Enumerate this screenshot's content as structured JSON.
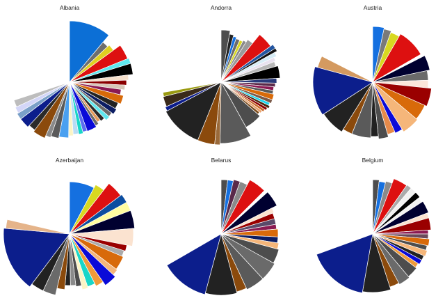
{
  "chart_data": [
    {
      "type": "pie",
      "title": "Albania",
      "slices": [
        {
          "radius": 88,
          "degrees": 40,
          "color": "#0c6fd6"
        },
        {
          "radius": 75,
          "degrees": 7,
          "color": "#6e6e6e"
        },
        {
          "radius": 78,
          "degrees": 7,
          "color": "#e0d020"
        },
        {
          "radius": 90,
          "degrees": 14,
          "color": "#dd1010"
        },
        {
          "radius": 92,
          "degrees": 5,
          "color": "#5fe8f0"
        },
        {
          "radius": 92,
          "degrees": 10,
          "color": "#000000"
        },
        {
          "radius": 85,
          "degrees": 5,
          "color": "#f6e0cc"
        },
        {
          "radius": 82,
          "degrees": 5,
          "color": "#8a0000"
        },
        {
          "radius": 80,
          "degrees": 5,
          "color": "#d7c8b8"
        },
        {
          "radius": 75,
          "degrees": 6,
          "color": "#8b1a52"
        },
        {
          "radius": 80,
          "degrees": 9,
          "color": "#d86a0a"
        },
        {
          "radius": 76,
          "degrees": 7,
          "color": "#232323"
        },
        {
          "radius": 78,
          "degrees": 6,
          "color": "#0c1d63"
        },
        {
          "radius": 75,
          "degrees": 5,
          "color": "#6a6a6a"
        },
        {
          "radius": 76,
          "degrees": 5,
          "color": "#5fe8f0"
        },
        {
          "radius": 72,
          "degrees": 5,
          "color": "#2a2a2a"
        },
        {
          "radius": 70,
          "degrees": 4,
          "color": "#e59a5a"
        },
        {
          "radius": 73,
          "degrees": 4,
          "color": "#6b6b6b"
        },
        {
          "radius": 75,
          "degrees": 11,
          "color": "#0a0ad8"
        },
        {
          "radius": 74,
          "degrees": 5,
          "color": "#5b6df0"
        },
        {
          "radius": 76,
          "degrees": 5,
          "color": "#19d6c8"
        },
        {
          "radius": 75,
          "degrees": 6,
          "color": "#b9dcf5"
        },
        {
          "radius": 77,
          "degrees": 5,
          "color": "#fbf4c6"
        },
        {
          "radius": 80,
          "degrees": 10,
          "color": "#4aa0f0"
        },
        {
          "radius": 82,
          "degrees": 8,
          "color": "#5a5a5a"
        },
        {
          "radius": 84,
          "degrees": 5,
          "color": "#8a8a8a"
        },
        {
          "radius": 88,
          "degrees": 12,
          "color": "#8b4a0c"
        },
        {
          "radius": 85,
          "degrees": 7,
          "color": "#2a2a2a"
        },
        {
          "radius": 88,
          "degrees": 10,
          "color": "#0c1e8c"
        },
        {
          "radius": 88,
          "degrees": 6,
          "color": "#7aa0c8"
        },
        {
          "radius": 86,
          "degrees": 6,
          "color": "#d3d6f8"
        },
        {
          "radius": 84,
          "degrees": 7,
          "color": "#bdbdbd"
        },
        {
          "radius": 0,
          "degrees": 43,
          "color": "#ffffff"
        }
      ]
    },
    {
      "type": "pie",
      "title": "Andorra",
      "slices": [
        {
          "radius": 75,
          "degrees": 10,
          "color": "#4d4d4d"
        },
        {
          "radius": 70,
          "degrees": 5,
          "color": "#222222"
        },
        {
          "radius": 68,
          "degrees": 4,
          "color": "#1570e0"
        },
        {
          "radius": 66,
          "degrees": 5,
          "color": "#6b6b6b"
        },
        {
          "radius": 66,
          "degrees": 4,
          "color": "#d8d820"
        },
        {
          "radius": 68,
          "degrees": 4,
          "color": "#8a8a8a"
        },
        {
          "radius": 72,
          "degrees": 7,
          "color": "#9a9a9a"
        },
        {
          "radius": 88,
          "degrees": 15,
          "color": "#dd1010"
        },
        {
          "radius": 92,
          "degrees": 4,
          "color": "#2255a0"
        },
        {
          "radius": 92,
          "degrees": 3,
          "color": "#111111"
        },
        {
          "radius": 88,
          "degrees": 4,
          "color": "#d6ecf6"
        },
        {
          "radius": 84,
          "degrees": 4,
          "color": "#e9e2f0"
        },
        {
          "radius": 82,
          "degrees": 5,
          "color": "#b8b8b8"
        },
        {
          "radius": 85,
          "degrees": 12,
          "color": "#000000"
        },
        {
          "radius": 80,
          "degrees": 5,
          "color": "#2a3a7a"
        },
        {
          "radius": 78,
          "degrees": 4,
          "color": "#5a2a4a"
        },
        {
          "radius": 76,
          "degrees": 4,
          "color": "#8b1a52"
        },
        {
          "radius": 76,
          "degrees": 4,
          "color": "#5a5a5a"
        },
        {
          "radius": 78,
          "degrees": 6,
          "color": "#d86a0a"
        },
        {
          "radius": 78,
          "degrees": 4,
          "color": "#7a5a4a"
        },
        {
          "radius": 76,
          "degrees": 3,
          "color": "#19d6f0"
        },
        {
          "radius": 78,
          "degrees": 3,
          "color": "#4a2a10"
        },
        {
          "radius": 76,
          "degrees": 3,
          "color": "#8b0000"
        },
        {
          "radius": 74,
          "degrees": 3,
          "color": "#c86a2a"
        },
        {
          "radius": 72,
          "degrees": 3,
          "color": "#e8a06a"
        },
        {
          "radius": 70,
          "degrees": 3,
          "color": "#7a4a1a"
        },
        {
          "radius": 74,
          "degrees": 20,
          "color": "#4d4d4d"
        },
        {
          "radius": 88,
          "degrees": 30,
          "color": "#5a5a5a"
        },
        {
          "radius": 90,
          "degrees": 5,
          "color": "#9a6a3a"
        },
        {
          "radius": 90,
          "degrees": 16,
          "color": "#8b4a0c"
        },
        {
          "radius": 90,
          "degrees": 40,
          "color": "#222222"
        },
        {
          "radius": 88,
          "degrees": 4,
          "color": "#0c1d8c"
        },
        {
          "radius": 86,
          "degrees": 10,
          "color": "#3a2a1a"
        },
        {
          "radius": 85,
          "degrees": 4,
          "color": "#9a9a10"
        },
        {
          "radius": 0,
          "degrees": 71,
          "color": "#ffffff"
        }
      ]
    },
    {
      "type": "pie",
      "title": "Austria",
      "slices": [
        {
          "radius": 80,
          "degrees": 12,
          "color": "#1570e0"
        },
        {
          "radius": 78,
          "degrees": 8,
          "color": "#7a7a7a"
        },
        {
          "radius": 76,
          "degrees": 10,
          "color": "#d8d820"
        },
        {
          "radius": 80,
          "degrees": 30,
          "color": "#dd1010"
        },
        {
          "radius": 82,
          "degrees": 3,
          "color": "#ffffff"
        },
        {
          "radius": 84,
          "degrees": 15,
          "color": "#000030"
        },
        {
          "radius": 80,
          "degrees": 10,
          "color": "#6a6a6a"
        },
        {
          "radius": 80,
          "degrees": 8,
          "color": "#fbe6da"
        },
        {
          "radius": 85,
          "degrees": 18,
          "color": "#9a0000"
        },
        {
          "radius": 82,
          "degrees": 16,
          "color": "#d86a0a"
        },
        {
          "radius": 84,
          "degrees": 18,
          "color": "#f5b67a"
        },
        {
          "radius": 80,
          "degrees": 8,
          "color": "#0a0ad8"
        },
        {
          "radius": 78,
          "degrees": 8,
          "color": "#e58a4a"
        },
        {
          "radius": 82,
          "degrees": 10,
          "color": "#4d4d4d"
        },
        {
          "radius": 78,
          "degrees": 8,
          "color": "#222222"
        },
        {
          "radius": 80,
          "degrees": 20,
          "color": "#5a5a5a"
        },
        {
          "radius": 80,
          "degrees": 10,
          "color": "#8b4a0c"
        },
        {
          "radius": 84,
          "degrees": 25,
          "color": "#222222"
        },
        {
          "radius": 86,
          "degrees": 48,
          "color": "#0c1e8c"
        },
        {
          "radius": 82,
          "degrees": 12,
          "color": "#d49a60"
        },
        {
          "radius": 0,
          "degrees": 63,
          "color": "#ffffff"
        }
      ]
    },
    {
      "type": "pie",
      "title": "Azerbaijan",
      "slices": [
        {
          "radius": 75,
          "degrees": 28,
          "color": "#1570e0"
        },
        {
          "radius": 80,
          "degrees": 10,
          "color": "#d8d820"
        },
        {
          "radius": 92,
          "degrees": 15,
          "color": "#dd1010"
        },
        {
          "radius": 94,
          "degrees": 8,
          "color": "#0c4ea0"
        },
        {
          "radius": 94,
          "degrees": 8,
          "color": "#fffca0"
        },
        {
          "radius": 94,
          "degrees": 16,
          "color": "#000030"
        },
        {
          "radius": 92,
          "degrees": 16,
          "color": "#fbe3d0"
        },
        {
          "radius": 84,
          "degrees": 6,
          "color": "#9a0000"
        },
        {
          "radius": 82,
          "degrees": 6,
          "color": "#aaaaaa"
        },
        {
          "radius": 84,
          "degrees": 14,
          "color": "#d86a0a"
        },
        {
          "radius": 86,
          "degrees": 6,
          "color": "#f5b67a"
        },
        {
          "radius": 90,
          "degrees": 12,
          "color": "#0a0ad8"
        },
        {
          "radius": 84,
          "degrees": 8,
          "color": "#f09a3a"
        },
        {
          "radius": 80,
          "degrees": 8,
          "color": "#19d6c8"
        },
        {
          "radius": 82,
          "degrees": 6,
          "color": "#fbf4c6"
        },
        {
          "radius": 76,
          "degrees": 6,
          "color": "#4d4d4d"
        },
        {
          "radius": 74,
          "degrees": 6,
          "color": "#8a8a8a"
        },
        {
          "radius": 74,
          "degrees": 6,
          "color": "#222222"
        },
        {
          "radius": 80,
          "degrees": 8,
          "color": "#8b4a0c"
        },
        {
          "radius": 90,
          "degrees": 12,
          "color": "#6a6a6a"
        },
        {
          "radius": 90,
          "degrees": 12,
          "color": "#222222"
        },
        {
          "radius": 95,
          "degrees": 58,
          "color": "#0c1e8c"
        },
        {
          "radius": 92,
          "degrees": 8,
          "color": "#e5b48a"
        },
        {
          "radius": 0,
          "degrees": 61,
          "color": "#ffffff"
        }
      ]
    },
    {
      "type": "pie",
      "title": "Belarus",
      "slices": [
        {
          "radius": 78,
          "degrees": 7,
          "color": "#4d4d4d"
        },
        {
          "radius": 78,
          "degrees": 6,
          "color": "#1570e0"
        },
        {
          "radius": 80,
          "degrees": 7,
          "color": "#5a2a4a"
        },
        {
          "radius": 80,
          "degrees": 8,
          "color": "#8a8a8a"
        },
        {
          "radius": 88,
          "degrees": 17,
          "color": "#dd1010"
        },
        {
          "radius": 90,
          "degrees": 3,
          "color": "#ffffff"
        },
        {
          "radius": 90,
          "degrees": 15,
          "color": "#000030"
        },
        {
          "radius": 82,
          "degrees": 5,
          "color": "#fbe3d0"
        },
        {
          "radius": 80,
          "degrees": 6,
          "color": "#9a0000"
        },
        {
          "radius": 80,
          "degrees": 6,
          "color": "#5a4a6a"
        },
        {
          "radius": 80,
          "degrees": 5,
          "color": "#8b1a52"
        },
        {
          "radius": 82,
          "degrees": 8,
          "color": "#d86a0a"
        },
        {
          "radius": 82,
          "degrees": 6,
          "color": "#0c1d63"
        },
        {
          "radius": 84,
          "degrees": 6,
          "color": "#f5b67a"
        },
        {
          "radius": 86,
          "degrees": 14,
          "color": "#4d4d4d"
        },
        {
          "radius": 88,
          "degrees": 18,
          "color": "#6a6a6a"
        },
        {
          "radius": 88,
          "degrees": 18,
          "color": "#5a5a5a"
        },
        {
          "radius": 86,
          "degrees": 10,
          "color": "#8b4a0c"
        },
        {
          "radius": 88,
          "degrees": 30,
          "color": "#222222"
        },
        {
          "radius": 90,
          "degrees": 45,
          "color": "#0c1e8c"
        },
        {
          "radius": 0,
          "degrees": 94,
          "color": "#ffffff"
        }
      ]
    },
    {
      "type": "pie",
      "title": "Belgium",
      "slices": [
        {
          "radius": 78,
          "degrees": 7,
          "color": "#4d4d4d"
        },
        {
          "radius": 76,
          "degrees": 7,
          "color": "#1570e0"
        },
        {
          "radius": 78,
          "degrees": 7,
          "color": "#8a8a8a"
        },
        {
          "radius": 85,
          "degrees": 14,
          "color": "#dd1010"
        },
        {
          "radius": 86,
          "degrees": 5,
          "color": "#aaaaaa"
        },
        {
          "radius": 86,
          "degrees": 6,
          "color": "#f2f2f2"
        },
        {
          "radius": 86,
          "degrees": 6,
          "color": "#000000"
        },
        {
          "radius": 84,
          "degrees": 5,
          "color": "#f2f2f2"
        },
        {
          "radius": 86,
          "degrees": 12,
          "color": "#000030"
        },
        {
          "radius": 84,
          "degrees": 5,
          "color": "#fbe3d0"
        },
        {
          "radius": 84,
          "degrees": 12,
          "color": "#9a0000"
        },
        {
          "radius": 80,
          "degrees": 4,
          "color": "#8b1a52"
        },
        {
          "radius": 80,
          "degrees": 5,
          "color": "#6a4a5a"
        },
        {
          "radius": 82,
          "degrees": 7,
          "color": "#d86a0a"
        },
        {
          "radius": 80,
          "degrees": 5,
          "color": "#4d4d4d"
        },
        {
          "radius": 82,
          "degrees": 6,
          "color": "#f5b67a"
        },
        {
          "radius": 80,
          "degrees": 5,
          "color": "#222222"
        },
        {
          "radius": 80,
          "degrees": 5,
          "color": "#0a0ad8"
        },
        {
          "radius": 78,
          "degrees": 5,
          "color": "#f09a3a"
        },
        {
          "radius": 80,
          "degrees": 12,
          "color": "#4d4d4d"
        },
        {
          "radius": 82,
          "degrees": 12,
          "color": "#6a6a6a"
        },
        {
          "radius": 80,
          "degrees": 10,
          "color": "#8b4a0c"
        },
        {
          "radius": 84,
          "degrees": 28,
          "color": "#222222"
        },
        {
          "radius": 86,
          "degrees": 60,
          "color": "#0c1e8c"
        },
        {
          "radius": 0,
          "degrees": 60,
          "color": "#ffffff"
        }
      ]
    }
  ]
}
